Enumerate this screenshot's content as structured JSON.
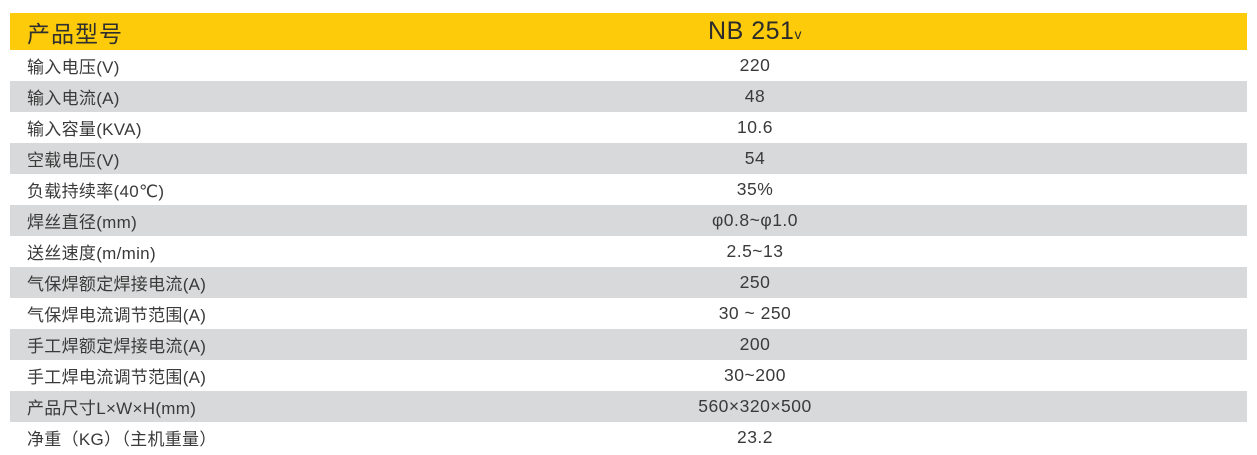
{
  "table": {
    "header": {
      "label": "产品型号",
      "model": "NB 251",
      "model_suffix": "v"
    },
    "rows": [
      {
        "label": "输入电压(V)",
        "value": "220"
      },
      {
        "label": "输入电流(A)",
        "value": "48"
      },
      {
        "label": "输入容量(KVA)",
        "value": "10.6"
      },
      {
        "label": "空载电压(V)",
        "value": "54"
      },
      {
        "label": "负载持续率(40℃)",
        "value": "35%"
      },
      {
        "label": "焊丝直径(mm)",
        "value": "φ0.8~φ1.0"
      },
      {
        "label": "送丝速度(m/min)",
        "value": "2.5~13"
      },
      {
        "label": "气保焊额定焊接电流(A)",
        "value": "250"
      },
      {
        "label": "气保焊电流调节范围(A)",
        "value": "30 ~ 250"
      },
      {
        "label": "手工焊额定焊接电流(A)",
        "value": "200"
      },
      {
        "label": "手工焊电流调节范围(A)",
        "value": "30~200"
      },
      {
        "label": "产品尺寸L×W×H(mm)",
        "value": "560×320×500"
      },
      {
        "label": "净重（KG）（主机重量）",
        "value": "23.2"
      }
    ],
    "colors": {
      "header_bg": "#fdcb0a",
      "stripe_bg": "#d8d9da",
      "text": "#3a3a3a"
    }
  }
}
